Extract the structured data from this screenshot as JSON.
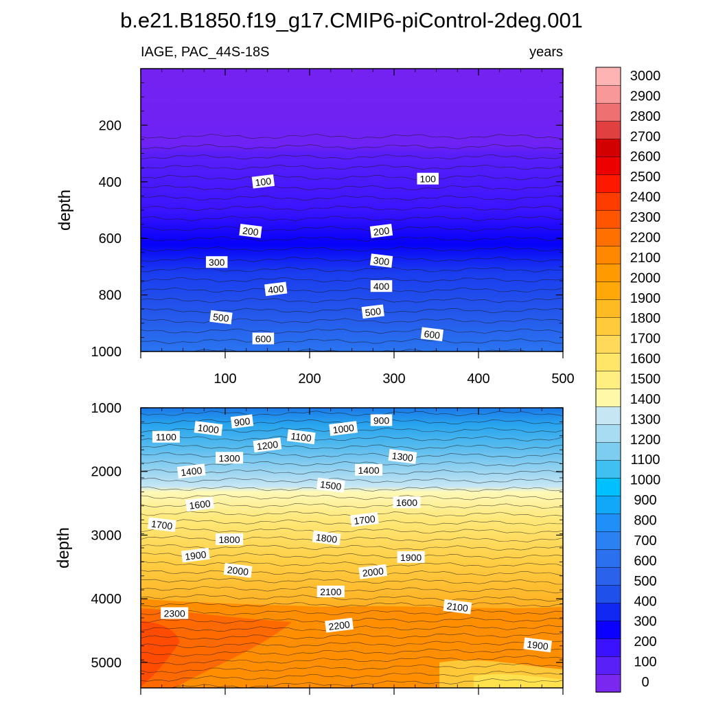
{
  "title": "b.e21.B1850.f19_g17.CMIP6-piControl-2deg.001",
  "panel_label_left": "IAGE, PAC_44S-18S",
  "panel_label_right": "years",
  "colorbar": {
    "levels": [
      0,
      100,
      200,
      300,
      400,
      500,
      600,
      700,
      800,
      900,
      1000,
      1100,
      1200,
      1300,
      1400,
      1500,
      1600,
      1700,
      1800,
      1900,
      2000,
      2100,
      2200,
      2300,
      2400,
      2500,
      2600,
      2700,
      2800,
      2900,
      3000
    ],
    "colors": [
      "#7a28f0",
      "#5a20f8",
      "#3a12ff",
      "#0b00ff",
      "#1028f2",
      "#2050ea",
      "#2a62ec",
      "#2b70ee",
      "#2b80f2",
      "#2090f8",
      "#12a8fa",
      "#00c0ff",
      "#40c0f0",
      "#7ccdf0",
      "#a8dcf2",
      "#c6e6f4",
      "#fff8a8",
      "#ffee80",
      "#ffe568",
      "#ffd95a",
      "#ffcb3c",
      "#ffbb22",
      "#ffa808",
      "#ff9a00",
      "#ff8800",
      "#ff7000",
      "#ff5400",
      "#ff3c00",
      "#ff1800",
      "#ec0000",
      "#d20000",
      "#e04040",
      "#ee7070",
      "#f89898",
      "#ffb4b4"
    ],
    "tick_labels": [
      "0",
      "100",
      "200",
      "300",
      "400",
      "500",
      "600",
      "700",
      "800",
      "900",
      "1000",
      "1100",
      "1200",
      "1300",
      "1400",
      "1500",
      "1600",
      "1700",
      "1800",
      "1900",
      "2000",
      "2100",
      "2200",
      "2300",
      "2400",
      "2500",
      "2600",
      "2700",
      "2800",
      "2900",
      "3000"
    ]
  },
  "chart_data": [
    {
      "type": "contour",
      "panel": "upper",
      "xlabel": "",
      "ylabel": "depth",
      "xlim": [
        0,
        500
      ],
      "ylim": [
        1000,
        0
      ],
      "x_ticks": [
        "100",
        "200",
        "300",
        "400",
        "500"
      ],
      "y_ticks": [
        "200",
        "400",
        "600",
        "800",
        "1000"
      ],
      "contour_levels": [
        0,
        100,
        200,
        300,
        400,
        500,
        600
      ],
      "contour_labels": [
        {
          "text": "100",
          "x": 145,
          "y": 400
        },
        {
          "text": "100",
          "x": 340,
          "y": 390
        },
        {
          "text": "200",
          "x": 130,
          "y": 575
        },
        {
          "text": "200",
          "x": 285,
          "y": 575
        },
        {
          "text": "300",
          "x": 90,
          "y": 685
        },
        {
          "text": "300",
          "x": 285,
          "y": 680
        },
        {
          "text": "400",
          "x": 160,
          "y": 780
        },
        {
          "text": "400",
          "x": 285,
          "y": 770
        },
        {
          "text": "500",
          "x": 95,
          "y": 880
        },
        {
          "text": "500",
          "x": 275,
          "y": 860
        },
        {
          "text": "600",
          "x": 145,
          "y": 955
        },
        {
          "text": "600",
          "x": 345,
          "y": 940
        }
      ]
    },
    {
      "type": "contour",
      "panel": "lower",
      "xlabel": "",
      "ylabel": "depth",
      "xlim": [
        0,
        500
      ],
      "ylim": [
        5400,
        1000
      ],
      "x_ticks": [],
      "y_ticks": [
        "1000",
        "2000",
        "3000",
        "4000",
        "5000"
      ],
      "contour_levels": [
        900,
        1000,
        1100,
        1200,
        1300,
        1400,
        1500,
        1600,
        1700,
        1800,
        1900,
        2000,
        2100,
        2200,
        2300
      ],
      "contour_labels": [
        {
          "text": "900",
          "x": 120,
          "y": 1220
        },
        {
          "text": "900",
          "x": 285,
          "y": 1200
        },
        {
          "text": "1000",
          "x": 80,
          "y": 1330
        },
        {
          "text": "1000",
          "x": 240,
          "y": 1330
        },
        {
          "text": "1100",
          "x": 30,
          "y": 1460
        },
        {
          "text": "1100",
          "x": 190,
          "y": 1460
        },
        {
          "text": "1200",
          "x": 150,
          "y": 1590
        },
        {
          "text": "1300",
          "x": 105,
          "y": 1790
        },
        {
          "text": "1300",
          "x": 310,
          "y": 1770
        },
        {
          "text": "1400",
          "x": 60,
          "y": 2000
        },
        {
          "text": "1400",
          "x": 270,
          "y": 1980
        },
        {
          "text": "1500",
          "x": 225,
          "y": 2220
        },
        {
          "text": "1600",
          "x": 70,
          "y": 2520
        },
        {
          "text": "1600",
          "x": 315,
          "y": 2490
        },
        {
          "text": "1700",
          "x": 25,
          "y": 2840
        },
        {
          "text": "1700",
          "x": 265,
          "y": 2760
        },
        {
          "text": "1800",
          "x": 105,
          "y": 3070
        },
        {
          "text": "1800",
          "x": 220,
          "y": 3050
        },
        {
          "text": "1900",
          "x": 65,
          "y": 3320
        },
        {
          "text": "1900",
          "x": 320,
          "y": 3350
        },
        {
          "text": "2000",
          "x": 115,
          "y": 3560
        },
        {
          "text": "2000",
          "x": 275,
          "y": 3580
        },
        {
          "text": "2100",
          "x": 225,
          "y": 3890
        },
        {
          "text": "2100",
          "x": 375,
          "y": 4130
        },
        {
          "text": "2200",
          "x": 235,
          "y": 4420
        },
        {
          "text": "2300",
          "x": 40,
          "y": 4230
        },
        {
          "text": "1900",
          "x": 470,
          "y": 4730
        }
      ]
    }
  ]
}
